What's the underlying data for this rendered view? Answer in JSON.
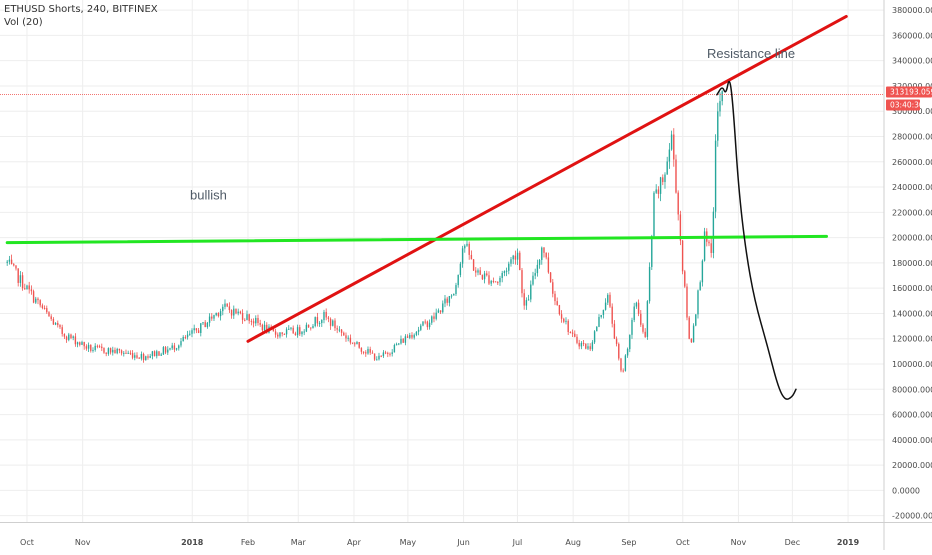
{
  "header": {
    "title": "ETHUSD Shorts, 240, BITFINEX",
    "volume": "Vol (20)"
  },
  "colors": {
    "background": "#ffffff",
    "grid": "#eeeeee",
    "axis_text": "#4a4a4a",
    "candle_up": "#26a69a",
    "candle_down": "#ef5350",
    "resistance": "#e01212",
    "support": "#22e622",
    "projection": "#111111",
    "price_line": "#ef5350",
    "price_tag_bg": "#ef5350",
    "price_tag_text": "#ffffff",
    "annotation": "#4f5a66"
  },
  "chart_data": {
    "type": "candlestick",
    "x_ticks": [
      "Oct",
      "Nov",
      "2018",
      "Feb",
      "Mar",
      "Apr",
      "May",
      "Jun",
      "Jul",
      "Aug",
      "Sep",
      "Oct",
      "Nov",
      "Dec",
      "2019"
    ],
    "y_ticks": [
      "380000.0000",
      "360000.0000",
      "340000.0000",
      "320000.0000",
      "300000.0000",
      "280000.0000",
      "260000.0000",
      "240000.0000",
      "220000.0000",
      "200000.0000",
      "180000.0000",
      "160000.0000",
      "140000.0000",
      "120000.0000",
      "100000.0000",
      "80000.0000",
      "60000.0000",
      "40000.0000",
      "20000.0000",
      "0.0000",
      "-20000.0000"
    ],
    "ylim": [
      -25000,
      388000
    ],
    "y_scale": "linear",
    "grid": true,
    "price_path": [
      [
        "2017-09-20",
        180000
      ],
      [
        "2017-10-05",
        152000
      ],
      [
        "2017-10-20",
        125000
      ],
      [
        "2017-11-05",
        112000
      ],
      [
        "2017-11-20",
        110000
      ],
      [
        "2017-12-05",
        106000
      ],
      [
        "2017-12-20",
        112000
      ],
      [
        "2018-01-05",
        128000
      ],
      [
        "2018-01-18",
        145000
      ],
      [
        "2018-02-01",
        137000
      ],
      [
        "2018-02-15",
        124000
      ],
      [
        "2018-03-01",
        126000
      ],
      [
        "2018-03-15",
        138000
      ],
      [
        "2018-04-01",
        116000
      ],
      [
        "2018-04-15",
        104000
      ],
      [
        "2018-05-01",
        122000
      ],
      [
        "2018-05-15",
        136000
      ],
      [
        "2018-05-27",
        158000
      ],
      [
        "2018-06-01",
        197000
      ],
      [
        "2018-06-08",
        172000
      ],
      [
        "2018-06-20",
        165000
      ],
      [
        "2018-07-01",
        190000
      ],
      [
        "2018-07-05",
        142000
      ],
      [
        "2018-07-15",
        195000
      ],
      [
        "2018-07-22",
        150000
      ],
      [
        "2018-08-01",
        120000
      ],
      [
        "2018-08-10",
        112000
      ],
      [
        "2018-08-20",
        155000
      ],
      [
        "2018-08-28",
        90000
      ],
      [
        "2018-09-05",
        150000
      ],
      [
        "2018-09-10",
        118000
      ],
      [
        "2018-09-15",
        230000
      ],
      [
        "2018-09-20",
        245000
      ],
      [
        "2018-09-25",
        280000
      ],
      [
        "2018-10-01",
        175000
      ],
      [
        "2018-10-05",
        112000
      ],
      [
        "2018-10-10",
        160000
      ],
      [
        "2018-10-13",
        200000
      ],
      [
        "2018-10-17",
        185000
      ],
      [
        "2018-10-20",
        300000
      ],
      [
        "2018-10-24",
        313193
      ]
    ],
    "current_price": {
      "label": "313193.0594",
      "countdown": "03:40:30",
      "value": 313193
    },
    "annotations": [
      {
        "type": "trendline",
        "name": "resistance",
        "from": [
          "2018-02-01",
          118000
        ],
        "to": [
          "2018-12-31",
          375000
        ]
      },
      {
        "type": "trendline",
        "name": "support",
        "from": [
          "2017-09-20",
          196000
        ],
        "to": [
          "2018-12-20",
          201000
        ]
      },
      {
        "type": "hand-drawn-path",
        "name": "projection",
        "points": [
          [
            "2018-10-20",
            313000
          ],
          [
            "2018-10-23",
            320000
          ],
          [
            "2018-10-25",
            313000
          ],
          [
            "2018-10-27",
            328000
          ],
          [
            "2018-10-29",
            305000
          ],
          [
            "2018-11-01",
            240000
          ],
          [
            "2018-11-05",
            190000
          ],
          [
            "2018-11-10",
            150000
          ],
          [
            "2018-11-17",
            115000
          ],
          [
            "2018-11-23",
            82000
          ],
          [
            "2018-11-27",
            71000
          ],
          [
            "2018-12-01",
            74000
          ],
          [
            "2018-12-03",
            80000
          ]
        ]
      }
    ],
    "labels": [
      {
        "text": "Resistance line",
        "at": [
          "2018-11-08",
          342000
        ]
      },
      {
        "text": "bullish",
        "at": [
          "2018-01-10",
          230000
        ]
      }
    ]
  }
}
